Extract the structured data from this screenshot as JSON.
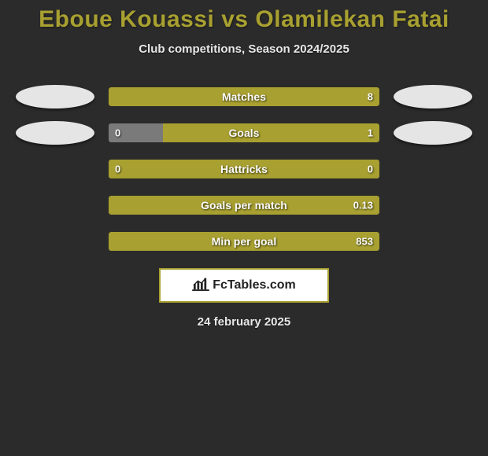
{
  "background_color": "#2b2b2b",
  "title": "Eboue Kouassi vs Olamilekan Fatai",
  "title_color": "#a8a030",
  "title_fontsize": 30,
  "subtitle": "Club competitions, Season 2024/2025",
  "subtitle_color": "#e8e8e8",
  "subtitle_fontsize": 15,
  "ellipse_color_left": "#e5e5e5",
  "ellipse_color_right": "#e5e5e5",
  "bars": [
    {
      "label": "Matches",
      "right_value": "8",
      "left_value": "",
      "left_color": "#a8a030",
      "right_color": "#a8a030",
      "left_pct": 0,
      "show_ellipses": true
    },
    {
      "label": "Goals",
      "left_value": "0",
      "right_value": "1",
      "left_color": "#7a7a7a",
      "right_color": "#a8a030",
      "left_pct": 20,
      "show_ellipses": true
    },
    {
      "label": "Hattricks",
      "left_value": "0",
      "right_value": "0",
      "left_color": "#a8a030",
      "right_color": "#7a7a7a",
      "left_pct": 100,
      "show_ellipses": false
    },
    {
      "label": "Goals per match",
      "left_value": "",
      "right_value": "0.13",
      "left_color": "#a8a030",
      "right_color": "#a8a030",
      "left_pct": 0,
      "show_ellipses": false
    },
    {
      "label": "Min per goal",
      "left_value": "",
      "right_value": "853",
      "left_color": "#a8a030",
      "right_color": "#a8a030",
      "left_pct": 0,
      "show_ellipses": false
    }
  ],
  "brand": {
    "text": "FcTables.com"
  },
  "date_text": "24 february 2025"
}
